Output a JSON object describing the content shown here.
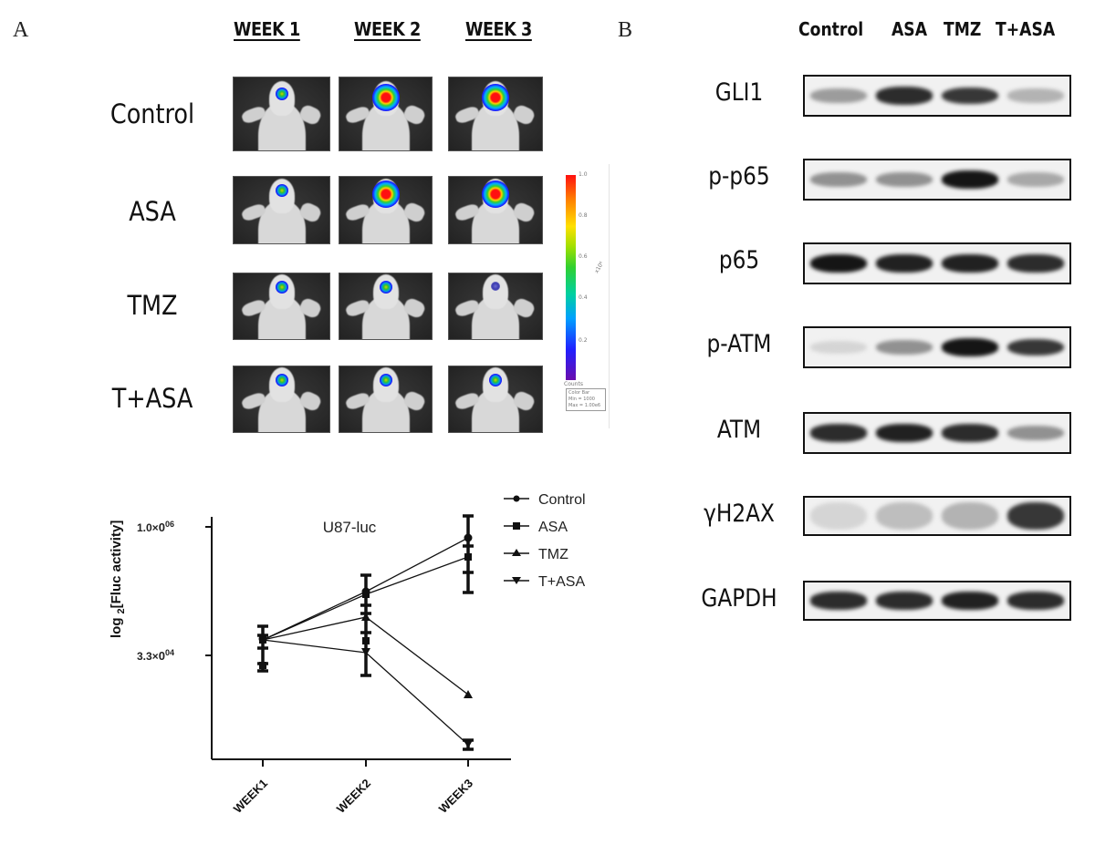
{
  "panel_a": {
    "letter": "A",
    "week_headers": [
      "WEEK 1",
      "WEEK 2",
      "WEEK 3"
    ],
    "row_labels": [
      "Control",
      "ASA",
      "TMZ",
      "T+ASA"
    ],
    "imaging_grid": [
      {
        "group": "Control",
        "signals": [
          "small",
          "large",
          "large"
        ]
      },
      {
        "group": "ASA",
        "signals": [
          "small",
          "large",
          "large"
        ]
      },
      {
        "group": "TMZ",
        "signals": [
          "small",
          "small",
          "faint"
        ]
      },
      {
        "group": "T+ASA",
        "signals": [
          "small",
          "small",
          "small"
        ]
      }
    ],
    "colorbar": {
      "ticks": [
        "1.0",
        "0.8",
        "0.6",
        "0.4",
        "0.2"
      ],
      "unit_label": "x10⁶",
      "bottom_label": "Counts",
      "legend_title": "Color Bar",
      "legend_min": "Min = 1000",
      "legend_max": "Max = 1.00e6",
      "colors": [
        "#ff1010",
        "#ff8000",
        "#ffe000",
        "#30d030",
        "#00a0ff",
        "#2020ff",
        "#6a0dad"
      ]
    },
    "chart": {
      "title": "U87-luc",
      "ylabel_main": "log",
      "ylabel_sub": "2",
      "ylabel_rest": "[Fluc activity]",
      "ytick_top": "1.0×10⁰⁶",
      "ytick_top_display": "1.0×\u00100⁰⁶",
      "ytick_top_base": "1.0×",
      "ytick_top_zero": "0",
      "ytick_top_exp": "06",
      "ytick_mid_base": "3.3×",
      "ytick_mid_zero": "0",
      "ytick_mid_exp": "04",
      "xticks": [
        "WEEK1",
        "WEEK2",
        "WEEK3"
      ],
      "legend": [
        "Control",
        "ASA",
        "TMZ",
        "T+ASA"
      ]
    }
  },
  "panel_b": {
    "letter": "B",
    "columns": [
      "Control",
      "ASA",
      "TMZ",
      "T+ASA"
    ],
    "blots": [
      {
        "label": "GLI1",
        "intensities": [
          0.35,
          0.85,
          0.8,
          0.25
        ]
      },
      {
        "label": "p-p65",
        "intensities": [
          0.4,
          0.4,
          0.95,
          0.3
        ]
      },
      {
        "label": "p65",
        "intensities": [
          0.95,
          0.9,
          0.9,
          0.85
        ]
      },
      {
        "label": "p-ATM",
        "intensities": [
          0.1,
          0.4,
          0.95,
          0.8
        ]
      },
      {
        "label": "ATM",
        "intensities": [
          0.85,
          0.9,
          0.85,
          0.4
        ]
      },
      {
        "label": "γH2AX",
        "intensities": [
          0.1,
          0.2,
          0.25,
          0.8
        ]
      },
      {
        "label": "GAPDH",
        "intensities": [
          0.85,
          0.85,
          0.9,
          0.85
        ]
      }
    ]
  },
  "chart_data": {
    "type": "line",
    "title": "U87-luc",
    "xlabel": "",
    "ylabel": "log2[Fluc activity]",
    "y_scale": "log2",
    "yticks": [
      "3.3x10^04",
      "1.0x10^06"
    ],
    "ytick_values": [
      33000,
      1000000
    ],
    "categories": [
      "WEEK1",
      "WEEK2",
      "WEEK3"
    ],
    "series": [
      {
        "name": "Control",
        "marker": "circle",
        "values": [
          42000,
          130000,
          750000
        ],
        "error_bars": [
          [
            27000,
            60000
          ],
          [
            60000,
            260000
          ],
          [
            350000,
            1300000
          ]
        ]
      },
      {
        "name": "ASA",
        "marker": "square",
        "values": [
          41000,
          120000,
          460000
        ],
        "error_bars": [
          [
            30000,
            55000
          ],
          [
            40000,
            220000
          ],
          [
            220000,
            700000
          ]
        ]
      },
      {
        "name": "TMZ",
        "marker": "triangle-up",
        "values": [
          41000,
          69000,
          12000
        ]
      },
      {
        "name": "T+ASA",
        "marker": "triangle-down",
        "values": [
          41000,
          35000,
          3500
        ],
        "error_bars": [
          [
            33000,
            52000
          ],
          [
            17000,
            69000
          ],
          [
            3200,
            3900
          ]
        ]
      }
    ],
    "legend_position": "top-right",
    "grid": false
  }
}
